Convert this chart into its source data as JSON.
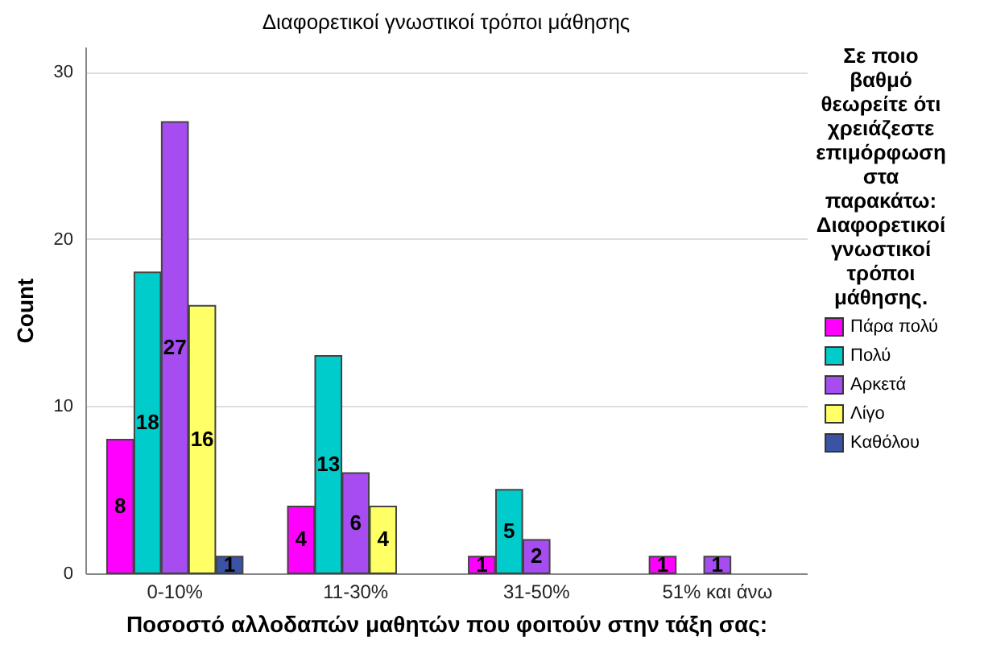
{
  "chart_data": {
    "type": "bar",
    "title": "Διαφορετικοί γνωστικοί τρόποι μάθησης",
    "xlabel": "Ποσοστό αλλοδαπών μαθητών που φοιτούν στην τάξη σας:",
    "ylabel": "Count",
    "legend_title": "Σε ποιο βαθμό θεωρείτε ότι χρειάζεστε επιμόρφωση στα παρακάτω: Διαφορετικοί γνωστικοί τρόποι μάθησης.",
    "categories": [
      "0-10%",
      "11-30%",
      "31-50%",
      "51% και άνω"
    ],
    "series": [
      {
        "name": "Πάρα πολύ",
        "color": "#ff00ff",
        "values": [
          8,
          4,
          1,
          1
        ]
      },
      {
        "name": "Πολύ",
        "color": "#00cccc",
        "values": [
          18,
          13,
          5,
          null
        ]
      },
      {
        "name": "Αρκετά",
        "color": "#a64cf0",
        "values": [
          27,
          6,
          2,
          1
        ]
      },
      {
        "name": "Λίγο",
        "color": "#ffff66",
        "values": [
          16,
          4,
          null,
          null
        ]
      },
      {
        "name": "Καθόλου",
        "color": "#3a53a4",
        "values": [
          1,
          null,
          null,
          null
        ]
      }
    ],
    "ylim": [
      0,
      31.5
    ],
    "yticks": [
      0,
      10,
      20,
      30
    ],
    "grid": "y",
    "legend": "right",
    "data_labels": true
  }
}
